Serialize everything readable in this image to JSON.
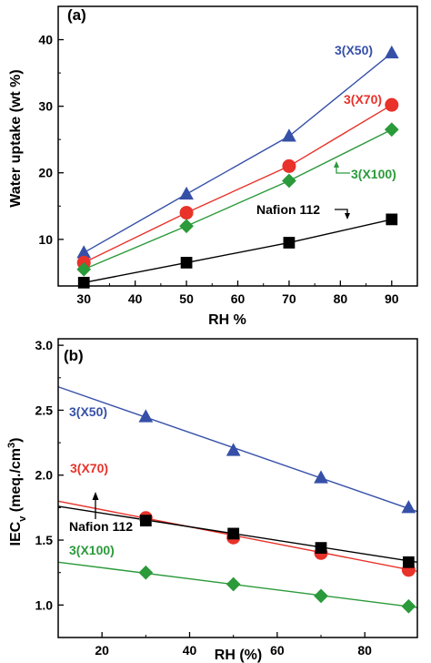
{
  "chart_data": [
    {
      "type": "line",
      "panel_label": "(a)",
      "title": "",
      "xlabel": "RH %",
      "ylabel": "Water uptake (wt %)",
      "xlim": [
        25,
        95
      ],
      "ylim": [
        3,
        45
      ],
      "xticks": [
        30,
        40,
        50,
        60,
        70,
        80,
        90
      ],
      "yticks": [
        10,
        20,
        30,
        40
      ],
      "grid": false,
      "series": [
        {
          "name": "3(X50)",
          "color": "#3650a8",
          "marker": "triangle",
          "x": [
            30,
            50,
            70,
            90
          ],
          "y": [
            8.0,
            16.8,
            25.5,
            38.0
          ]
        },
        {
          "name": "3(X70)",
          "color": "#e8322a",
          "marker": "circle",
          "x": [
            30,
            50,
            70,
            90
          ],
          "y": [
            6.5,
            14.0,
            21.0,
            30.2
          ]
        },
        {
          "name": "3(X100)",
          "color": "#2a9a3a",
          "marker": "diamond",
          "x": [
            30,
            50,
            70,
            90
          ],
          "y": [
            5.5,
            12.0,
            18.8,
            26.5
          ]
        },
        {
          "name": "Nafion 112",
          "color": "#000000",
          "marker": "square",
          "x": [
            30,
            50,
            70,
            90
          ],
          "y": [
            3.5,
            6.5,
            9.5,
            13.0
          ]
        }
      ]
    },
    {
      "type": "scatter",
      "panel_label": "(b)",
      "title": "",
      "xlabel": "RH (%)",
      "ylabel": "IECv (meq./cm3)",
      "xlim": [
        10,
        92
      ],
      "ylim": [
        0.75,
        3.05
      ],
      "xticks": [
        20,
        40,
        60,
        80
      ],
      "yticks": [
        1.0,
        1.5,
        2.0,
        2.5,
        3.0
      ],
      "grid": false,
      "series": [
        {
          "name": "3(X50)",
          "color": "#3650a8",
          "marker": "triangle",
          "x": [
            30,
            50,
            70,
            90
          ],
          "y": [
            2.45,
            2.19,
            1.98,
            1.75
          ],
          "fit": [
            [
              10,
              2.68
            ],
            [
              92,
              1.72
            ]
          ]
        },
        {
          "name": "3(X70)",
          "color": "#e8322a",
          "marker": "circle",
          "x": [
            30,
            50,
            70,
            90
          ],
          "y": [
            1.67,
            1.52,
            1.4,
            1.27
          ],
          "fit": [
            [
              10,
              1.8
            ],
            [
              92,
              1.26
            ]
          ]
        },
        {
          "name": "Nafion 112",
          "color": "#000000",
          "marker": "square",
          "x": [
            30,
            50,
            70,
            90
          ],
          "y": [
            1.65,
            1.55,
            1.44,
            1.33
          ],
          "fit": [
            [
              10,
              1.76
            ],
            [
              92,
              1.33
            ]
          ]
        },
        {
          "name": "3(X100)",
          "color": "#2a9a3a",
          "marker": "diamond",
          "x": [
            30,
            50,
            70,
            90
          ],
          "y": [
            1.25,
            1.16,
            1.07,
            0.99
          ],
          "fit": [
            [
              10,
              1.33
            ],
            [
              92,
              0.98
            ]
          ]
        }
      ]
    }
  ]
}
